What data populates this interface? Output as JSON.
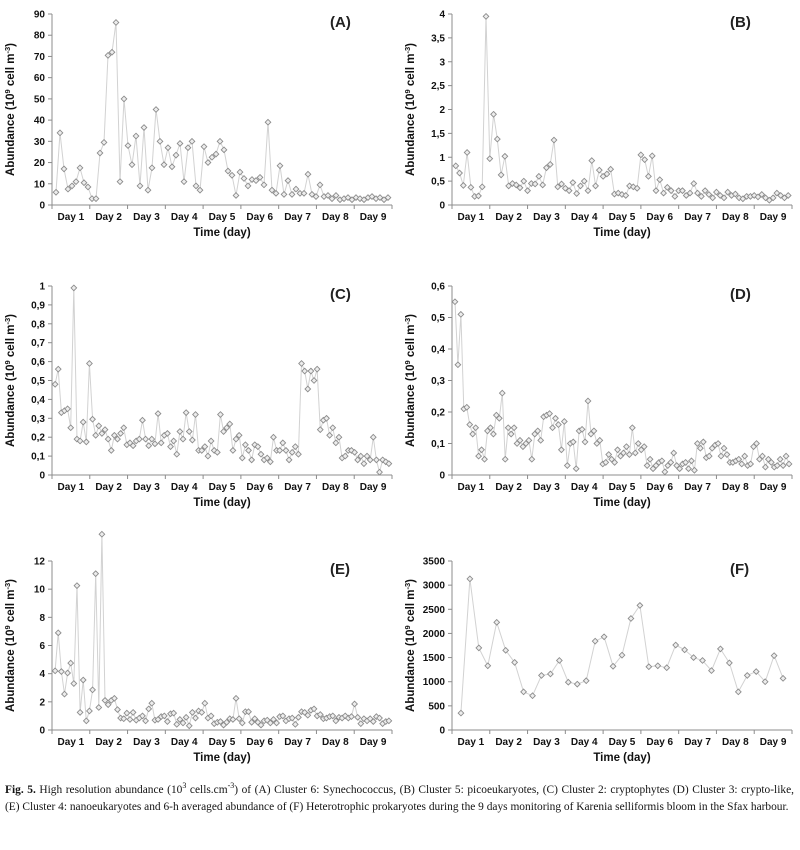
{
  "figure": {
    "caption_parts": [
      {
        "t": "Fig. 5.",
        "b": true
      },
      {
        "t": "  High resolution abundance (10"
      },
      {
        "t": "3",
        "sup": true
      },
      {
        "t": " cells.cm"
      },
      {
        "t": "-3",
        "sup": true
      },
      {
        "t": ") of (A) Cluster 6: Synechococcus, (B) Cluster 5: picoeukaryotes, (C) Cluster 2: cryptophytes (D) Cluster 3: crypto-like, (E) Cluster 4: nanoeukaryotes and 6-h averaged abundance of (F) Heterotrophic prokaryotes during the 9 days monitoring of Karenia selliformis bloom in the Sfax harbour."
      }
    ]
  },
  "chart_data": {
    "type": "line",
    "colors": {
      "line": "#d2d2d2",
      "marker_stroke": "#8c8c8c",
      "marker_fill": "#ededed",
      "axis": "#8c8c8c",
      "text": "#111111"
    },
    "panels": [
      {
        "id": "A",
        "label": "(A)",
        "ylabel": "Abundance (10{9} cell m{-3})",
        "xlabel": "Time (day)",
        "x_categories": [
          "Day 1",
          "Day 2",
          "Day 3",
          "Day 4",
          "Day 5",
          "Day 6",
          "Day 7",
          "Day 8",
          "Day 9"
        ],
        "ylim": [
          0,
          90
        ],
        "ytick_values": [
          0,
          10,
          20,
          30,
          40,
          50,
          60,
          70,
          80,
          90
        ],
        "ytick_labels": [
          "0",
          "10",
          "20",
          "30",
          "40",
          "50",
          "60",
          "70",
          "80",
          "90"
        ],
        "values": [
          6,
          34,
          17,
          7.5,
          9,
          11,
          17.5,
          10.5,
          8.5,
          3,
          3,
          24.5,
          29.5,
          70.5,
          72,
          86,
          11,
          50,
          28,
          19,
          32.5,
          9,
          36.5,
          7,
          17.5,
          45,
          30,
          19,
          27,
          18,
          23.5,
          29,
          11,
          27,
          30,
          9,
          7,
          27.5,
          20,
          22.5,
          24,
          30,
          26,
          16,
          14,
          4.5,
          15.5,
          12.5,
          9,
          12,
          11.5,
          13,
          9.5,
          39,
          7,
          5.5,
          18.5,
          5,
          11.5,
          5,
          7.5,
          5.5,
          5.5,
          14.5,
          5,
          4,
          9.5,
          4,
          4.5,
          3,
          4.5,
          2.5,
          3,
          3.5,
          2.5,
          3.5,
          3,
          2.5,
          3.5,
          4,
          3,
          3.5,
          2.5,
          3.5
        ]
      },
      {
        "id": "B",
        "label": "(B)",
        "ylabel": "Abundance (10{9} cell m{-3})",
        "xlabel": "Time (day)",
        "x_categories": [
          "Day 1",
          "Day 2",
          "Day 3",
          "Day 4",
          "Day 5",
          "Day 6",
          "Day 7",
          "Day 8",
          "Day 9"
        ],
        "ylim": [
          0,
          4
        ],
        "ytick_values": [
          0,
          0.5,
          1,
          1.5,
          2,
          2.5,
          3,
          3.5,
          4
        ],
        "ytick_labels": [
          "0",
          "0,5",
          "1",
          "1,5",
          "2",
          "2,5",
          "3",
          "3,5",
          "4"
        ],
        "values": [
          0.82,
          0.67,
          0.41,
          1.1,
          0.37,
          0.18,
          0.19,
          0.38,
          3.95,
          0.97,
          1.9,
          1.38,
          0.63,
          1.02,
          0.4,
          0.45,
          0.42,
          0.36,
          0.5,
          0.3,
          0.45,
          0.44,
          0.6,
          0.42,
          0.78,
          0.85,
          1.36,
          0.38,
          0.44,
          0.35,
          0.3,
          0.47,
          0.24,
          0.4,
          0.5,
          0.3,
          0.93,
          0.4,
          0.73,
          0.6,
          0.65,
          0.75,
          0.23,
          0.25,
          0.22,
          0.2,
          0.4,
          0.38,
          0.35,
          1.05,
          0.95,
          0.6,
          1.03,
          0.3,
          0.53,
          0.25,
          0.37,
          0.3,
          0.18,
          0.3,
          0.3,
          0.2,
          0.25,
          0.45,
          0.25,
          0.18,
          0.3,
          0.22,
          0.15,
          0.27,
          0.2,
          0.15,
          0.27,
          0.2,
          0.23,
          0.15,
          0.13,
          0.18,
          0.18,
          0.2,
          0.17,
          0.22,
          0.15,
          0.1,
          0.15,
          0.25,
          0.2,
          0.15,
          0.2
        ]
      },
      {
        "id": "C",
        "label": "(C)",
        "ylabel": "Abundance (10{9} cell m{-3})",
        "xlabel": "Time (day)",
        "x_categories": [
          "Day 1",
          "Day 2",
          "Day 3",
          "Day 4",
          "Day 5",
          "Day 6",
          "Day 7",
          "Day 8",
          "Day 9"
        ],
        "ylim": [
          0,
          1
        ],
        "ytick_values": [
          0,
          0.1,
          0.2,
          0.3,
          0.4,
          0.5,
          0.6,
          0.7,
          0.8,
          0.9,
          1
        ],
        "ytick_labels": [
          "0",
          "0,1",
          "0,2",
          "0,3",
          "0,4",
          "0,5",
          "0,6",
          "0,7",
          "0,8",
          "0,9",
          "1"
        ],
        "values": [
          0.48,
          0.56,
          0.33,
          0.34,
          0.35,
          0.25,
          0.99,
          0.19,
          0.18,
          0.28,
          0.175,
          0.59,
          0.295,
          0.21,
          0.26,
          0.22,
          0.24,
          0.19,
          0.13,
          0.21,
          0.19,
          0.22,
          0.25,
          0.16,
          0.17,
          0.155,
          0.18,
          0.19,
          0.29,
          0.19,
          0.155,
          0.19,
          0.165,
          0.325,
          0.17,
          0.21,
          0.22,
          0.15,
          0.18,
          0.11,
          0.23,
          0.19,
          0.33,
          0.23,
          0.185,
          0.32,
          0.13,
          0.13,
          0.15,
          0.1,
          0.18,
          0.13,
          0.12,
          0.32,
          0.23,
          0.25,
          0.27,
          0.13,
          0.19,
          0.21,
          0.09,
          0.16,
          0.13,
          0.08,
          0.16,
          0.15,
          0.11,
          0.08,
          0.09,
          0.07,
          0.2,
          0.13,
          0.13,
          0.17,
          0.13,
          0.08,
          0.12,
          0.15,
          0.11,
          0.59,
          0.55,
          0.455,
          0.55,
          0.5,
          0.56,
          0.24,
          0.29,
          0.3,
          0.21,
          0.25,
          0.17,
          0.2,
          0.09,
          0.1,
          0.13,
          0.13,
          0.12,
          0.08,
          0.1,
          0.06,
          0.1,
          0.08,
          0.2,
          0.08,
          0.015,
          0.08,
          0.07,
          0.06
        ]
      },
      {
        "id": "D",
        "label": "(D)",
        "ylabel": "Abundance (10{9} cell m{-3})",
        "xlabel": "Time (day)",
        "x_categories": [
          "Day 1",
          "Day 2",
          "Day 3",
          "Day 4",
          "Day 5",
          "Day 6",
          "Day 7",
          "Day 8",
          "Day 9"
        ],
        "ylim": [
          0,
          0.6
        ],
        "ytick_values": [
          0,
          0.1,
          0.2,
          0.3,
          0.4,
          0.5,
          0.6
        ],
        "ytick_labels": [
          "0",
          "0,1",
          "0,2",
          "0,3",
          "0,4",
          "0,5",
          "0,6"
        ],
        "values": [
          0.55,
          0.35,
          0.51,
          0.21,
          0.215,
          0.16,
          0.13,
          0.15,
          0.06,
          0.08,
          0.05,
          0.14,
          0.15,
          0.13,
          0.19,
          0.18,
          0.26,
          0.05,
          0.15,
          0.13,
          0.15,
          0.1,
          0.11,
          0.09,
          0.1,
          0.11,
          0.05,
          0.13,
          0.14,
          0.11,
          0.185,
          0.19,
          0.195,
          0.15,
          0.18,
          0.16,
          0.08,
          0.17,
          0.03,
          0.1,
          0.105,
          0.02,
          0.14,
          0.145,
          0.105,
          0.235,
          0.13,
          0.14,
          0.1,
          0.11,
          0.035,
          0.04,
          0.065,
          0.05,
          0.04,
          0.08,
          0.06,
          0.07,
          0.09,
          0.065,
          0.15,
          0.07,
          0.1,
          0.08,
          0.09,
          0.03,
          0.05,
          0.02,
          0.03,
          0.04,
          0.045,
          0.01,
          0.03,
          0.04,
          0.07,
          0.03,
          0.02,
          0.035,
          0.04,
          0.02,
          0.045,
          0.015,
          0.1,
          0.085,
          0.105,
          0.055,
          0.06,
          0.085,
          0.095,
          0.1,
          0.06,
          0.085,
          0.065,
          0.04,
          0.04,
          0.045,
          0.05,
          0.035,
          0.06,
          0.03,
          0.035,
          0.09,
          0.1,
          0.05,
          0.06,
          0.025,
          0.05,
          0.04,
          0.025,
          0.03,
          0.05,
          0.03,
          0.06,
          0.035
        ]
      },
      {
        "id": "E",
        "label": "(E)",
        "ylabel": "Abundance (10{9} cell m{-3})",
        "xlabel": "Time (day)",
        "x_categories": [
          "Day 1",
          "Day 2",
          "Day 3",
          "Day 4",
          "Day 5",
          "Day 6",
          "Day 7",
          "Day 8",
          "Day 9"
        ],
        "ylim": [
          0,
          12
        ],
        "ytick_values": [
          0,
          2,
          4,
          6,
          8,
          10,
          12
        ],
        "ytick_labels": [
          "0",
          "2",
          "4",
          "6",
          "8",
          "10",
          "12"
        ],
        "values": [
          4.2,
          6.9,
          4.15,
          2.55,
          4.05,
          4.75,
          3.3,
          10.25,
          1.25,
          3.55,
          0.65,
          1.35,
          2.85,
          11.1,
          1.6,
          13.9,
          2.1,
          1.8,
          2.1,
          2.25,
          1.45,
          0.85,
          0.8,
          1.2,
          0.75,
          1.25,
          0.7,
          0.85,
          1.0,
          0.65,
          1.5,
          1.9,
          0.7,
          0.75,
          0.95,
          1.0,
          0.6,
          1.15,
          1.2,
          0.4,
          0.75,
          0.5,
          0.9,
          0.3,
          1.25,
          0.85,
          1.35,
          1.25,
          1.9,
          0.85,
          1.0,
          0.45,
          0.55,
          0.6,
          0.35,
          0.55,
          0.8,
          0.75,
          2.25,
          0.8,
          0.5,
          1.3,
          1.3,
          0.55,
          0.8,
          0.55,
          0.35,
          0.65,
          0.7,
          0.5,
          0.75,
          0.5,
          0.95,
          1.0,
          0.65,
          0.8,
          0.85,
          0.4,
          0.9,
          1.3,
          1.25,
          1.05,
          1.4,
          1.5,
          1.0,
          1.1,
          0.8,
          0.85,
          0.95,
          1.0,
          0.65,
          0.9,
          0.85,
          1.0,
          0.85,
          0.95,
          1.85,
          0.9,
          0.45,
          0.8,
          0.65,
          0.8,
          0.6,
          0.95,
          0.85,
          0.45,
          0.6,
          0.65
        ]
      },
      {
        "id": "F",
        "label": "(F)",
        "ylabel": "Abundance (10{9} cell m{-3})",
        "xlabel": "Time (day)",
        "x_categories": [
          "Day 1",
          "Day 2",
          "Day 3",
          "Day 4",
          "Day 5",
          "Day 6",
          "Day 7",
          "Day 8",
          "Day 9"
        ],
        "ylim": [
          0,
          3500
        ],
        "ytick_values": [
          0,
          500,
          1000,
          1500,
          2000,
          2500,
          3000,
          3500
        ],
        "ytick_labels": [
          "0",
          "500",
          "1000",
          "1500",
          "2000",
          "2500",
          "3000",
          "3500"
        ],
        "values": [
          350,
          3130,
          1700,
          1330,
          2230,
          1650,
          1400,
          790,
          710,
          1130,
          1160,
          1440,
          990,
          950,
          1020,
          1840,
          1930,
          1320,
          1550,
          2310,
          2580,
          1310,
          1330,
          1290,
          1760,
          1660,
          1500,
          1440,
          1230,
          1680,
          1390,
          790,
          1130,
          1210,
          1000,
          1540,
          1070
        ]
      }
    ]
  }
}
